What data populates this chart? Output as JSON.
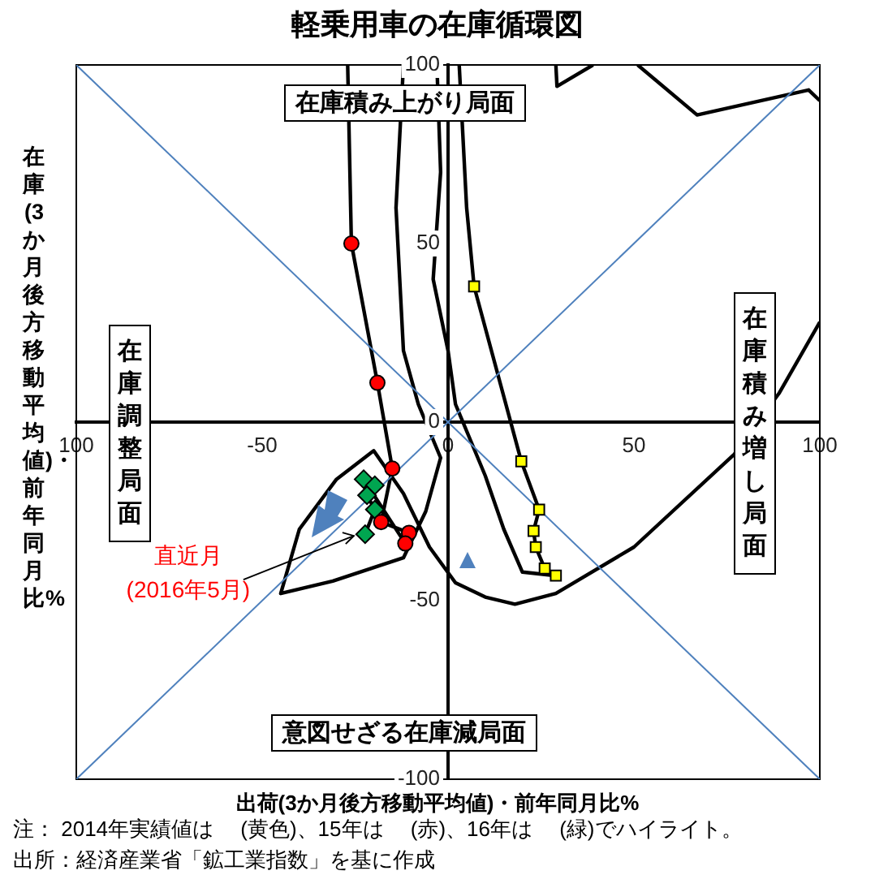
{
  "chart_data": {
    "type": "scatter",
    "title": "軽乗用車の在庫循環図",
    "xlabel": "出荷(3か月後方移動平均値)・前年同月比%",
    "ylabel": "在庫(3か月後方移動平均値)・前年同月比%",
    "xlim": [
      -100,
      100
    ],
    "ylim": [
      -100,
      100
    ],
    "xticks": [
      {
        "value": -100,
        "label": "100"
      },
      -50,
      0,
      50,
      100
    ],
    "yticks": [
      -100,
      -50,
      0,
      50,
      100
    ],
    "grid": false,
    "legend": false,
    "series": [
      {
        "type": "line",
        "color": "#4f81bd",
        "x": [
          -100,
          100
        ],
        "values": [
          -100,
          100
        ],
        "marker": "none"
      },
      {
        "type": "line",
        "color": "#4f81bd",
        "x": [
          -100,
          100
        ],
        "values": [
          100,
          -100
        ],
        "marker": "none"
      },
      {
        "type": "line",
        "color": "#000000",
        "x": [
          51,
          67,
          97,
          100,
          null,
          29,
          29.3,
          39,
          null,
          100,
          89,
          77,
          50,
          29,
          18,
          10,
          2,
          -5,
          -12,
          -20,
          -30,
          -40,
          -45,
          -31,
          -12,
          -6,
          -2,
          -8,
          -12,
          -14,
          -12,
          null,
          -3,
          -2,
          -4,
          0,
          2,
          6,
          10,
          15,
          20,
          29,
          26,
          23.6,
          23,
          24.5,
          19.7,
          7,
          5,
          3,
          null,
          -27,
          -26,
          -19,
          -15,
          -18,
          -10.5,
          -11.5,
          -22.7,
          -19.7,
          -21.8,
          -19.7,
          -22.3
        ],
        "values": [
          100,
          86,
          93,
          90,
          null,
          100,
          94,
          100,
          null,
          28,
          8,
          -9,
          -35,
          -48,
          -51,
          -49,
          -45,
          -35,
          -20,
          -8,
          -16,
          -30,
          -48,
          -44.5,
          -38,
          -25,
          -10,
          5,
          20,
          60,
          100,
          null,
          100,
          70,
          40,
          20,
          5,
          -5,
          -15,
          -30,
          -42,
          -43,
          -41,
          -35,
          -30.5,
          -24.5,
          -11,
          38,
          60,
          100,
          null,
          100,
          50,
          11,
          -13,
          -28,
          -31,
          -34,
          -16,
          -17.7,
          -20.5,
          -24.5,
          -31.4
        ],
        "marker": "none"
      },
      {
        "type": "scatter",
        "color": "#ffff00",
        "x": [
          29,
          26,
          23.6,
          23,
          24.5,
          19.7,
          7
        ],
        "values": [
          -43,
          -41,
          -35,
          -30.5,
          -24.5,
          -11,
          38
        ],
        "marker": "square"
      },
      {
        "type": "scatter",
        "color": "#ff0000",
        "x": [
          -26,
          -19,
          -15,
          -18,
          -10.5,
          -11.5
        ],
        "values": [
          50,
          11,
          -13,
          -28,
          -31,
          -34
        ],
        "marker": "circle"
      },
      {
        "type": "scatter",
        "color": "#00a550",
        "x": [
          -22.7,
          -19.7,
          -21.8,
          -19.7,
          -22.3
        ],
        "values": [
          -16,
          -17.7,
          -20.5,
          -24.5,
          -31.4
        ],
        "marker": "diamond"
      }
    ],
    "annotations": [
      "在庫積み上がり局面",
      "在庫積み増し局面",
      "意図せざる在庫減局面",
      "在庫調整局面",
      {
        "text": "直近月\n(2016年5月)",
        "x": -22.3,
        "y": -31.4
      },
      "注：  2014年実績値は　 (黄色)、15年は　 (赤)、16年は　 (緑)でハイライト。",
      "出所：経済産業省「鉱工業指数」を基に作成"
    ]
  }
}
